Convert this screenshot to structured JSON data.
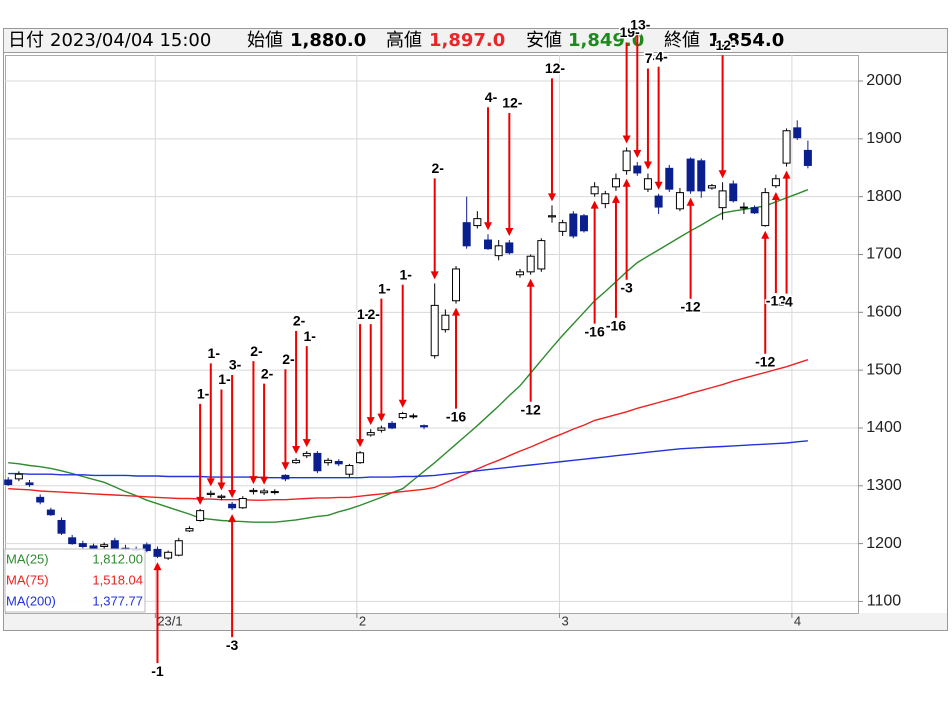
{
  "header": {
    "date_label": "日付",
    "date": "2023/04/04 15:00",
    "open_label": "始値",
    "open": "1,880.0",
    "high_label": "高値",
    "high": "1,897.0",
    "low_label": "安値",
    "low": "1,849.0",
    "close_label": "終値",
    "close": "1,854.0"
  },
  "chart_data": {
    "type": "candlestick",
    "categories": [
      null,
      null,
      null,
      null,
      null,
      null,
      null,
      null,
      null,
      null,
      null,
      null,
      null,
      null,
      null,
      null,
      null,
      null,
      null,
      null,
      null,
      null,
      null,
      null,
      null,
      null,
      null,
      null,
      null,
      null,
      null,
      null,
      null,
      null,
      null,
      null,
      null,
      null,
      null,
      null,
      null,
      null,
      null,
      null,
      null,
      null,
      null,
      null,
      null,
      null,
      null,
      null,
      null,
      null,
      null,
      null,
      null,
      null,
      null,
      null,
      null,
      null,
      null,
      null,
      null,
      null,
      null,
      null,
      null,
      null,
      null,
      null,
      null,
      null,
      null,
      null
    ],
    "open": [
      1310,
      1312,
      1305,
      1280,
      1258,
      1240,
      1210,
      1200,
      1196,
      1195,
      1205,
      1192,
      1190,
      1198,
      1190,
      1175,
      1180,
      1222,
      1240,
      1285,
      1280,
      1268,
      1262,
      1290,
      1288,
      1290,
      1318,
      1340,
      1352,
      1356,
      1340,
      1342,
      1320,
      1340,
      1388,
      1396,
      1408,
      1418,
      1420,
      1404,
      1525,
      1570,
      1620,
      1755,
      1750,
      1725,
      1698,
      1720,
      1665,
      1670,
      1675,
      1765,
      1740,
      1770,
      1767,
      1805,
      1788,
      1817,
      1845,
      1853,
      1813,
      1801,
      1849,
      1779,
      1865,
      1862,
      1815,
      1781,
      1822,
      1781,
      1781,
      1750,
      1819,
      1858,
      1919,
      1880
    ],
    "high": [
      1315,
      1325,
      1310,
      1285,
      1262,
      1245,
      1215,
      1205,
      1200,
      1202,
      1210,
      1198,
      1195,
      1202,
      1195,
      1188,
      1210,
      1230,
      1260,
      1292,
      1285,
      1272,
      1282,
      1296,
      1295,
      1294,
      1320,
      1348,
      1360,
      1360,
      1348,
      1346,
      1338,
      1360,
      1398,
      1404,
      1412,
      1428,
      1425,
      1406,
      1650,
      1605,
      1680,
      1800,
      1775,
      1735,
      1725,
      1725,
      1675,
      1700,
      1728,
      1785,
      1760,
      1775,
      1770,
      1825,
      1810,
      1840,
      1885,
      1860,
      1840,
      1805,
      1855,
      1815,
      1868,
      1866,
      1822,
      1825,
      1828,
      1790,
      1785,
      1815,
      1838,
      1918,
      1932,
      1897
    ],
    "low": [
      1300,
      1308,
      1298,
      1268,
      1248,
      1215,
      1198,
      1192,
      1188,
      1190,
      1190,
      1185,
      1185,
      1185,
      1175,
      1172,
      1178,
      1220,
      1238,
      1280,
      1275,
      1258,
      1260,
      1285,
      1284,
      1285,
      1308,
      1338,
      1348,
      1322,
      1335,
      1334,
      1315,
      1338,
      1385,
      1392,
      1398,
      1415,
      1416,
      1398,
      1520,
      1565,
      1615,
      1710,
      1745,
      1708,
      1690,
      1700,
      1660,
      1665,
      1670,
      1755,
      1732,
      1728,
      1738,
      1800,
      1780,
      1810,
      1838,
      1836,
      1808,
      1770,
      1808,
      1775,
      1805,
      1798,
      1812,
      1760,
      1790,
      1770,
      1770,
      1748,
      1815,
      1852,
      1898,
      1849
    ],
    "close": [
      1302,
      1320,
      1302,
      1272,
      1250,
      1218,
      1200,
      1195,
      1192,
      1198,
      1192,
      1190,
      1188,
      1188,
      1178,
      1185,
      1205,
      1226,
      1257,
      1287,
      1282,
      1262,
      1278,
      1292,
      1291,
      1290,
      1312,
      1344,
      1356,
      1326,
      1344,
      1338,
      1335,
      1357,
      1392,
      1400,
      1400,
      1425,
      1421,
      1402,
      1612,
      1595,
      1675,
      1715,
      1762,
      1710,
      1715,
      1703,
      1670,
      1697,
      1724,
      1767,
      1755,
      1732,
      1741,
      1817,
      1805,
      1831,
      1879,
      1841,
      1831,
      1782,
      1813,
      1807,
      1810,
      1810,
      1819,
      1810,
      1793,
      1782,
      1772,
      1807,
      1831,
      1914,
      1902,
      1854
    ],
    "up_color": "#ffffff",
    "down_color": "#0a1f8f",
    "wick_color": "#000000",
    "series": [
      {
        "name": "MA(25)",
        "color": "#2e8b2e",
        "legend_value": "1,812.00",
        "values": [
          1340,
          1338,
          1335,
          1333,
          1330,
          1326,
          1321,
          1316,
          1311,
          1306,
          1298,
          1290,
          1283,
          1275,
          1269,
          1263,
          1257,
          1251,
          1244,
          1242,
          1240,
          1239,
          1238,
          1237,
          1237,
          1237,
          1239,
          1241,
          1244,
          1247,
          1249,
          1255,
          1260,
          1266,
          1273,
          1280,
          1288,
          1295,
          1310,
          1325,
          1340,
          1356,
          1372,
          1388,
          1404,
          1421,
          1438,
          1456,
          1473,
          1495,
          1517,
          1539,
          1560,
          1580,
          1600,
          1620,
          1636,
          1653,
          1670,
          1686,
          1697,
          1708,
          1719,
          1730,
          1741,
          1751,
          1762,
          1772,
          1775,
          1778,
          1781,
          1784,
          1791,
          1798,
          1805,
          1812
        ]
      },
      {
        "name": "MA(75)",
        "color": "#ee2222",
        "legend_value": "1,518.04",
        "values": [
          1295,
          1294,
          1293,
          1291,
          1290,
          1289,
          1288,
          1287,
          1286,
          1285,
          1284,
          1283,
          1282,
          1281,
          1280,
          1279,
          1278,
          1278,
          1277,
          1277,
          1276,
          1276,
          1276,
          1275,
          1275,
          1276,
          1276,
          1277,
          1278,
          1279,
          1279,
          1280,
          1280,
          1282,
          1284,
          1286,
          1288,
          1290,
          1292,
          1294,
          1297,
          1305,
          1313,
          1321,
          1329,
          1337,
          1344,
          1352,
          1360,
          1367,
          1375,
          1383,
          1390,
          1398,
          1405,
          1413,
          1418,
          1423,
          1428,
          1434,
          1439,
          1444,
          1449,
          1454,
          1460,
          1465,
          1470,
          1475,
          1481,
          1486,
          1491,
          1496,
          1501,
          1506,
          1512,
          1518.04
        ]
      },
      {
        "name": "MA(200)",
        "color": "#2233dd",
        "legend_value": "1,377.77",
        "values": [
          1321,
          1321,
          1320,
          1320,
          1320,
          1319,
          1319,
          1319,
          1318,
          1318,
          1318,
          1318,
          1317,
          1317,
          1317,
          1316,
          1316,
          1316,
          1316,
          1315,
          1315,
          1315,
          1315,
          1315,
          1314,
          1314,
          1314,
          1314,
          1314,
          1314,
          1314,
          1314,
          1314,
          1314,
          1315,
          1315,
          1315,
          1316,
          1316,
          1317,
          1318,
          1320,
          1322,
          1324,
          1326,
          1328,
          1330,
          1332,
          1334,
          1336,
          1338,
          1340,
          1342,
          1344,
          1346,
          1348,
          1350,
          1352,
          1354,
          1356,
          1358,
          1360,
          1362,
          1364,
          1365,
          1366,
          1367,
          1368,
          1369,
          1370,
          1371,
          1372,
          1373,
          1374,
          1376,
          1377.77
        ]
      }
    ],
    "signals_above": [
      null,
      null,
      null,
      null,
      null,
      null,
      null,
      null,
      null,
      null,
      null,
      null,
      null,
      null,
      null,
      null,
      null,
      null,
      "1-",
      "1-",
      "1-",
      "3-",
      null,
      "2-",
      "2-",
      null,
      "2-",
      "2-",
      "1-",
      null,
      null,
      null,
      null,
      "1-",
      "2-",
      "1-",
      null,
      "1-",
      null,
      null,
      "2-",
      null,
      null,
      null,
      null,
      "4-",
      null,
      "12-",
      null,
      null,
      null,
      "12-",
      null,
      null,
      null,
      null,
      null,
      null,
      "19-",
      "13-",
      "7-",
      "4-",
      null,
      null,
      null,
      null,
      null,
      "12-",
      null,
      null,
      null,
      null,
      null,
      null,
      null,
      null
    ],
    "signals_below": [
      null,
      null,
      null,
      null,
      null,
      null,
      null,
      null,
      null,
      null,
      null,
      null,
      null,
      null,
      "-1",
      null,
      null,
      null,
      null,
      null,
      null,
      "-3",
      null,
      null,
      null,
      null,
      null,
      null,
      null,
      null,
      null,
      null,
      null,
      null,
      null,
      null,
      null,
      null,
      null,
      null,
      null,
      null,
      "-16",
      null,
      null,
      null,
      null,
      null,
      null,
      "-12",
      null,
      null,
      null,
      null,
      null,
      "-16",
      null,
      "-16",
      "-3",
      null,
      null,
      null,
      null,
      null,
      "-12",
      null,
      null,
      null,
      null,
      null,
      null,
      "-12",
      "-12",
      "-4",
      null,
      null
    ],
    "signal_color": "#ee0000",
    "xlim": [
      -0.3,
      79.7
    ],
    "xticks": [
      {
        "value": 13.8,
        "label": "23/1"
      },
      {
        "value": 32.7,
        "label": "2"
      },
      {
        "value": 51.7,
        "label": "3"
      },
      {
        "value": 73.5,
        "label": "4"
      }
    ],
    "ylim": [
      1080,
      2045
    ],
    "yticks": [
      1100,
      1200,
      1300,
      1400,
      1500,
      1600,
      1700,
      1800,
      1900,
      2000
    ],
    "grid": true
  }
}
